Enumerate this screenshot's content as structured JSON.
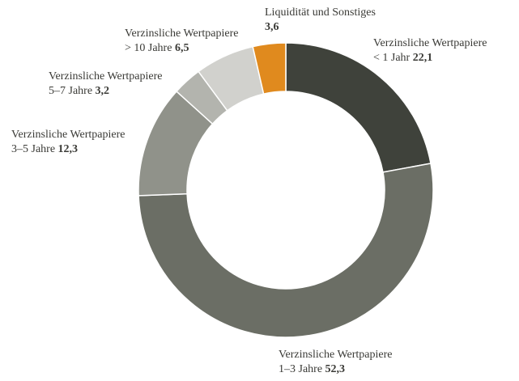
{
  "chart_data": {
    "type": "donut",
    "title": "",
    "slices": [
      {
        "line1": "Verzinsliche Wertpapiere",
        "line2": "< 1 Jahr",
        "value": 22.1,
        "value_label": "22,1",
        "color": "#3f423b"
      },
      {
        "line1": "Verzinsliche Wertpapiere",
        "line2": "1–3 Jahre",
        "value": 52.3,
        "value_label": "52,3",
        "color": "#6b6e65"
      },
      {
        "line1": "Verzinsliche Wertpapiere",
        "line2": "3–5 Jahre",
        "value": 12.3,
        "value_label": "12,3",
        "color": "#90928a"
      },
      {
        "line1": "Verzinsliche Wertpapiere",
        "line2": "5–7 Jahre",
        "value": 3.2,
        "value_label": "3,2",
        "color": "#b3b4ae"
      },
      {
        "line1": "Verzinsliche Wertpapiere",
        "line2": "> 10 Jahre",
        "value": 6.5,
        "value_label": "6,5",
        "color": "#d1d1cd"
      },
      {
        "line1": "Liquidität und Sonstiges",
        "line2": "",
        "value": 3.6,
        "value_label": "3,6",
        "color": "#e08a1e"
      }
    ]
  }
}
